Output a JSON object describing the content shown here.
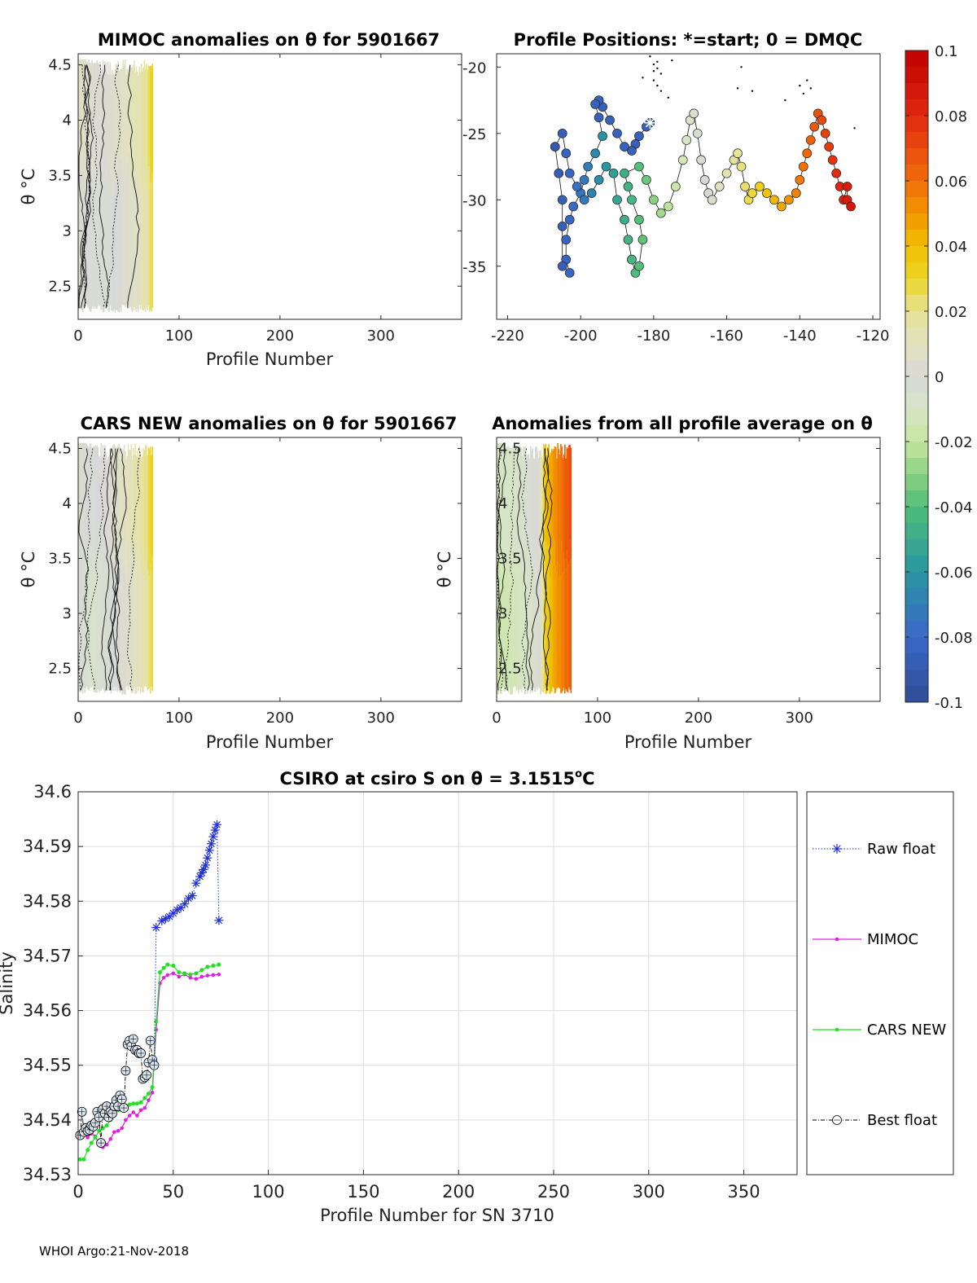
{
  "footer": "WHOI Argo:21-Nov-2018",
  "theta_symbol": "θ",
  "colorbar": {
    "ticks": [
      "0.1",
      "0.08",
      "0.06",
      "0.04",
      "0.02",
      "0",
      "-0.02",
      "-0.04",
      "-0.06",
      "-0.08",
      "-0.1"
    ],
    "colors": [
      "#c00000",
      "#e02010",
      "#f05010",
      "#f08a00",
      "#f0d000",
      "#e4e29a",
      "#d8d8d8",
      "#c8e6a0",
      "#78cc78",
      "#28a890",
      "#3a68c8",
      "#304c94"
    ]
  },
  "panels": {
    "mimoc": {
      "title": "MIMOC anomalies on θ  for 5901667",
      "xlabel": "Profile Number",
      "ylabel": "θ °C",
      "xticks": [
        "0",
        "100",
        "200",
        "300"
      ],
      "yticks": [
        "4.5",
        "4",
        "3.5",
        "3",
        "2.5"
      ]
    },
    "positions": {
      "title": "Profile Positions: *=start; 0 = DMQC",
      "xticks": [
        "-220",
        "-200",
        "-180",
        "-160",
        "-140",
        "-120"
      ],
      "yticks": [
        "-20",
        "-25",
        "-30",
        "-35"
      ]
    },
    "cars": {
      "title": "CARS NEW anomalies on θ for 5901667",
      "xlabel": "Profile Number",
      "ylabel": "θ °C",
      "xticks": [
        "0",
        "100",
        "200",
        "300"
      ],
      "yticks": [
        "4.5",
        "4",
        "3.5",
        "3",
        "2.5"
      ]
    },
    "allavg": {
      "title": "Anomalies from all profile average on θ",
      "xlabel": "Profile Number",
      "ylabel": "θ °C",
      "xticks": [
        "0",
        "100",
        "200",
        "300"
      ],
      "yticks": [
        "4.5",
        "4",
        "3.5",
        "3",
        "2.5"
      ]
    },
    "salinity": {
      "title": "CSIRO at csiro S on θ = 3.1515°C",
      "title_pre": "CSIRO at csiro S on θ = 3.1515",
      "title_sup": "o",
      "title_post": "C",
      "xlabel": "Profile Number for SN 3710",
      "ylabel": "Salinity",
      "xticks": [
        "0",
        "50",
        "100",
        "150",
        "200",
        "250",
        "300",
        "350"
      ],
      "yticks": [
        "34.6",
        "34.59",
        "34.58",
        "34.57",
        "34.56",
        "34.55",
        "34.54",
        "34.53"
      ],
      "legend": [
        "Raw float",
        "MIMOC",
        "CARS NEW",
        "Best float"
      ]
    }
  },
  "chart_data": [
    {
      "type": "heatmap",
      "name": "mimoc",
      "title": "MIMOC anomalies on θ  for 5901667",
      "xlabel": "Profile Number",
      "ylabel": "θ °C",
      "xlim": [
        0,
        380
      ],
      "ylim": [
        2.2,
        4.6
      ],
      "profiles_end": 74,
      "anomaly_by_profile": [
        {
          "profile": 0,
          "value": 0.005
        },
        {
          "profile": 15,
          "value": 0.0
        },
        {
          "profile": 30,
          "value": 0.0
        },
        {
          "profile": 45,
          "value": 0.005
        },
        {
          "profile": 60,
          "value": 0.01
        },
        {
          "profile": 68,
          "value": 0.018
        },
        {
          "profile": 72,
          "value": 0.028
        }
      ]
    },
    {
      "type": "scatter",
      "name": "positions",
      "title": "Profile Positions: *=start; 0 = DMQC",
      "xlim": [
        -223,
        -118
      ],
      "ylim": [
        -39,
        -19
      ],
      "start": {
        "lon": -181,
        "lat": -24.2
      },
      "lons": [
        -181,
        -182,
        -184,
        -185,
        -186,
        -188,
        -190,
        -192,
        -194,
        -195,
        -196,
        -195,
        -194,
        -196,
        -198,
        -199,
        -200,
        -202,
        -203,
        -204,
        -204,
        -203,
        -205,
        -205,
        -205,
        -206,
        -207,
        -205,
        -204,
        -203,
        -201,
        -199,
        -197,
        -195,
        -193,
        -191,
        -190,
        -188,
        -187,
        -186,
        -185,
        -184,
        -183,
        -184,
        -186,
        -187,
        -188,
        -184,
        -182,
        -180,
        -178,
        -176,
        -174,
        -172,
        -171,
        -170,
        -169,
        -168,
        -167,
        -166,
        -165,
        -164,
        -162,
        -160,
        -158,
        -157,
        -156,
        -155,
        -154,
        -153,
        -151,
        -149,
        -147,
        -145,
        -143,
        -141,
        -140,
        -139,
        -138,
        -137,
        -136,
        -135,
        -134,
        -133,
        -132,
        -131,
        -130,
        -129,
        -128,
        -127,
        -127,
        -126
      ],
      "lats": [
        -24.2,
        -24.5,
        -25.2,
        -25.8,
        -26.3,
        -26.0,
        -25.0,
        -24.0,
        -23.0,
        -22.5,
        -22.8,
        -23.8,
        -25.2,
        -26.5,
        -27.5,
        -28.5,
        -29.5,
        -30.5,
        -31.5,
        -33.0,
        -34.5,
        -35.5,
        -35.0,
        -32.0,
        -30.0,
        -28.0,
        -26.0,
        -25.0,
        -26.5,
        -28.0,
        -29.0,
        -30.0,
        -29.5,
        -28.5,
        -27.5,
        -28.0,
        -30.0,
        -31.5,
        -33.0,
        -34.5,
        -35.5,
        -35.0,
        -33.0,
        -31.5,
        -30.0,
        -29.0,
        -28.0,
        -27.5,
        -28.5,
        -30.0,
        -31.0,
        -30.5,
        -29.0,
        -27.0,
        -25.5,
        -24.0,
        -23.5,
        -25.0,
        -27.0,
        -28.5,
        -29.5,
        -30.0,
        -29.0,
        -28.0,
        -27.0,
        -26.5,
        -27.5,
        -29.0,
        -30.0,
        -29.5,
        -29.0,
        -29.5,
        -30.0,
        -30.5,
        -30.0,
        -29.5,
        -28.5,
        -27.5,
        -26.5,
        -25.5,
        -24.5,
        -23.5,
        -24.0,
        -25.0,
        -26.0,
        -27.0,
        -28.0,
        -29.0,
        -30.0,
        -29.0,
        -30.0,
        -30.5
      ],
      "colorbar_range": [
        -0.1,
        0.1
      ]
    },
    {
      "type": "heatmap",
      "name": "cars",
      "title": "CARS NEW anomalies on θ for 5901667",
      "xlabel": "Profile Number",
      "ylabel": "θ °C",
      "xlim": [
        0,
        380
      ],
      "ylim": [
        2.2,
        4.6
      ],
      "profiles_end": 74,
      "anomaly_by_profile": [
        {
          "profile": 0,
          "value": 0.0
        },
        {
          "profile": 15,
          "value": -0.005
        },
        {
          "profile": 30,
          "value": 0.0
        },
        {
          "profile": 45,
          "value": 0.005
        },
        {
          "profile": 60,
          "value": 0.012
        },
        {
          "profile": 68,
          "value": 0.02
        },
        {
          "profile": 72,
          "value": 0.028
        }
      ]
    },
    {
      "type": "heatmap",
      "name": "allavg",
      "title": "Anomalies from all profile average on θ",
      "xlabel": "Profile Number",
      "ylabel": "θ °C",
      "xlim": [
        0,
        380
      ],
      "ylim": [
        2.2,
        4.6
      ],
      "profiles_end": 74,
      "anomaly_by_profile": [
        {
          "profile": 0,
          "value": -0.015
        },
        {
          "profile": 20,
          "value": -0.012
        },
        {
          "profile": 35,
          "value": -0.005
        },
        {
          "profile": 42,
          "value": 0.0
        },
        {
          "profile": 48,
          "value": 0.035
        },
        {
          "profile": 58,
          "value": 0.05
        },
        {
          "profile": 66,
          "value": 0.06
        },
        {
          "profile": 72,
          "value": 0.065
        }
      ]
    },
    {
      "type": "line",
      "name": "salinity",
      "title": "CSIRO at csiro S on θ = 3.1515°C",
      "xlabel": "Profile Number for SN 3710",
      "ylabel": "Salinity",
      "xlim": [
        0,
        378
      ],
      "ylim": [
        34.53,
        34.6
      ],
      "grid": true,
      "legend_position": "outside-right",
      "series": [
        {
          "name": "Raw float",
          "color": "#1f2fd8",
          "x": [
            41,
            44,
            46,
            48,
            50,
            52,
            54,
            56,
            58,
            60,
            62,
            64,
            65,
            66,
            67,
            68,
            69,
            70,
            71,
            72,
            73,
            74
          ],
          "y": [
            34.5752,
            34.5764,
            34.5768,
            34.5772,
            34.5778,
            34.5784,
            34.5788,
            34.5795,
            34.5805,
            34.581,
            34.5833,
            34.5845,
            34.5852,
            34.5858,
            34.5866,
            34.5879,
            34.5893,
            34.5905,
            34.5918,
            34.593,
            34.594,
            34.5765
          ]
        },
        {
          "name": "MIMOC",
          "color": "#e020e0",
          "x": [
            1,
            3,
            5,
            7,
            9,
            11,
            13,
            15,
            17,
            19,
            21,
            23,
            25,
            27,
            29,
            31,
            33,
            35,
            37,
            39,
            41,
            43,
            45,
            47,
            50,
            53,
            56,
            59,
            62,
            65,
            68,
            71,
            74
          ],
          "y": [
            34.5375,
            34.5372,
            34.5368,
            34.5375,
            34.537,
            34.5355,
            34.535,
            34.5355,
            34.5365,
            34.5378,
            34.538,
            34.5385,
            34.54,
            34.5408,
            34.5414,
            34.5408,
            34.5418,
            34.5422,
            34.5436,
            34.545,
            34.5565,
            34.565,
            34.566,
            34.5665,
            34.5668,
            34.5662,
            34.5666,
            34.566,
            34.5658,
            34.5662,
            34.5664,
            34.5665,
            34.5666
          ]
        },
        {
          "name": "CARS NEW",
          "color": "#22e022",
          "x": [
            1,
            3,
            5,
            7,
            9,
            11,
            13,
            15,
            17,
            19,
            21,
            23,
            25,
            27,
            29,
            31,
            33,
            35,
            37,
            39,
            41,
            43,
            45,
            47,
            50,
            53,
            56,
            59,
            62,
            65,
            68,
            71,
            74
          ],
          "y": [
            34.5328,
            34.5328,
            34.5345,
            34.5358,
            34.5368,
            34.538,
            34.5385,
            34.539,
            34.54,
            34.5412,
            34.5418,
            34.5422,
            34.5425,
            34.5428,
            34.543,
            34.543,
            34.5432,
            34.544,
            34.5448,
            34.546,
            34.558,
            34.567,
            34.5678,
            34.5684,
            34.5682,
            34.567,
            34.5668,
            34.5666,
            34.5668,
            34.5674,
            34.568,
            34.5682,
            34.5684
          ]
        },
        {
          "name": "Best float",
          "color": "#000000",
          "x": [
            1,
            2,
            3,
            4,
            5,
            6,
            7,
            8,
            9,
            10,
            11,
            12,
            13,
            14,
            15,
            16,
            17,
            18,
            19,
            20,
            21,
            22,
            23,
            24,
            25,
            26,
            27,
            28,
            29,
            30,
            31,
            32,
            33,
            34,
            35,
            36,
            37,
            38,
            39,
            40
          ],
          "y": [
            34.5372,
            34.5415,
            34.5378,
            34.5385,
            34.538,
            34.5382,
            34.539,
            34.5388,
            34.5395,
            34.5415,
            34.5405,
            34.5358,
            34.542,
            34.5412,
            34.5425,
            34.5405,
            34.5415,
            34.5412,
            34.5425,
            34.5436,
            34.5425,
            34.5445,
            34.5438,
            34.5422,
            34.549,
            34.5538,
            34.5545,
            34.5535,
            34.5548,
            34.5528,
            34.5528,
            34.5522,
            34.5522,
            34.5475,
            34.5478,
            34.5482,
            34.5505,
            34.5545,
            34.551,
            34.55
          ]
        }
      ]
    }
  ]
}
